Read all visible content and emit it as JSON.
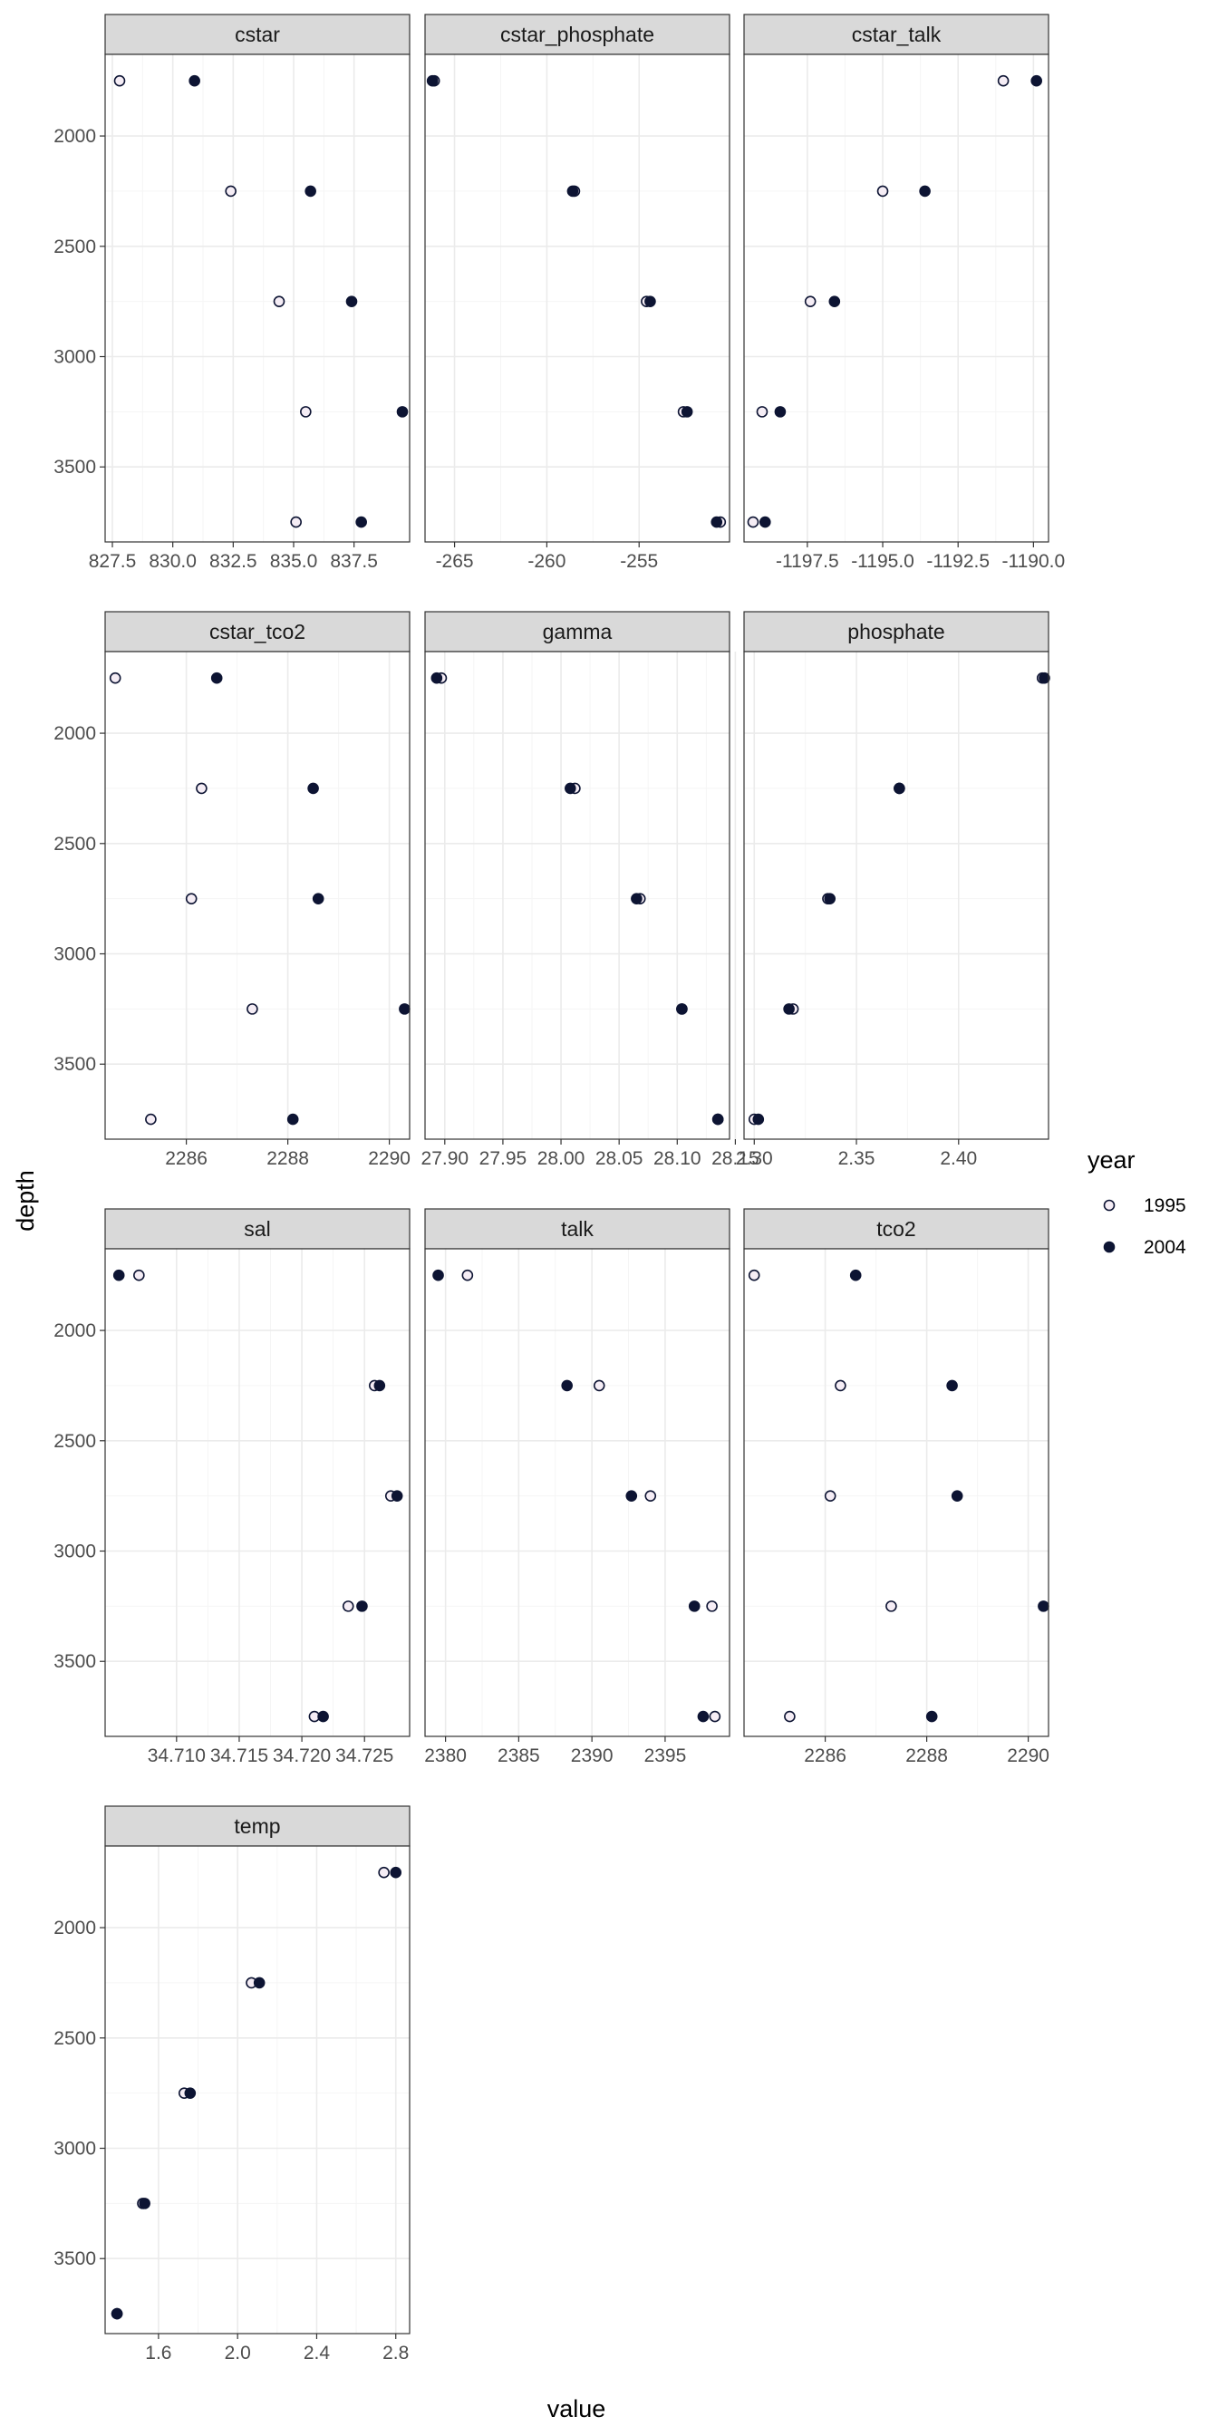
{
  "chart_data": {
    "type": "scatter",
    "xlabel": "value",
    "ylabel": "depth",
    "y_axis": "reversed",
    "y_range": [
      1630,
      3840
    ],
    "y_ticks": [
      2000,
      2500,
      3000,
      3500
    ],
    "y_tick_labels": [
      "2000",
      "2500",
      "3000",
      "3500"
    ],
    "depths": [
      1750,
      2250,
      2750,
      3250,
      3750
    ],
    "grid": true,
    "facet_scales": "free_x",
    "legend": {
      "title": "year",
      "position": "right",
      "entries": [
        {
          "label": "1995",
          "fill": "#f5edf5",
          "stroke": "#0d1433"
        },
        {
          "label": "2004",
          "fill": "#0d1433",
          "stroke": "#0d1433"
        }
      ]
    },
    "colors": {
      "panel_border": "#333333",
      "strip_fill": "#d9d9d9",
      "grid_major": "#ebebeb",
      "grid_minor": "#f5f5f5"
    },
    "panels": [
      {
        "title": "cstar",
        "xlim": [
          827.2,
          839.8
        ],
        "x_ticks": [
          827.5,
          830.0,
          832.5,
          835.0,
          837.5
        ],
        "x_tick_labels": [
          "827.5",
          "830.0",
          "832.5",
          "835.0",
          "837.5"
        ],
        "series": [
          {
            "year": "1995",
            "x": [
              827.8,
              832.4,
              834.4,
              835.5,
              835.1
            ]
          },
          {
            "year": "2004",
            "x": [
              830.9,
              835.7,
              837.4,
              839.5,
              837.8
            ]
          }
        ]
      },
      {
        "title": "cstar_phosphate",
        "xlim": [
          -266.6,
          -250.1
        ],
        "x_ticks": [
          -265,
          -260,
          -255
        ],
        "x_tick_labels": [
          "-265",
          "-260",
          "-255"
        ],
        "series": [
          {
            "year": "1995",
            "x": [
              -266.1,
              -258.5,
              -254.6,
              -252.6,
              -250.6
            ]
          },
          {
            "year": "2004",
            "x": [
              -266.2,
              -258.6,
              -254.4,
              -252.4,
              -250.8
            ]
          }
        ]
      },
      {
        "title": "cstar_talk",
        "xlim": [
          -1199.6,
          -1189.5
        ],
        "x_ticks": [
          -1197.5,
          -1195.0,
          -1192.5,
          -1190.0
        ],
        "x_tick_labels": [
          "-1197.5",
          "-1195.0",
          "-1192.5",
          "-1190.0"
        ],
        "series": [
          {
            "year": "1995",
            "x": [
              -1191.0,
              -1195.0,
              -1197.4,
              -1199.0,
              -1199.3
            ]
          },
          {
            "year": "2004",
            "x": [
              -1189.9,
              -1193.6,
              -1196.6,
              -1198.4,
              -1198.9
            ]
          }
        ]
      },
      {
        "title": "cstar_tco2",
        "xlim": [
          2284.4,
          2290.4
        ],
        "x_ticks": [
          2286,
          2288,
          2290
        ],
        "x_tick_labels": [
          "2286",
          "2288",
          "2290"
        ],
        "series": [
          {
            "year": "1995",
            "x": [
              2284.6,
              2286.3,
              2286.1,
              2287.3,
              2285.3
            ]
          },
          {
            "year": "2004",
            "x": [
              2286.6,
              2288.5,
              2288.6,
              2290.3,
              2288.1
            ]
          }
        ]
      },
      {
        "title": "gamma",
        "xlim": [
          27.883,
          28.145
        ],
        "x_ticks": [
          27.9,
          27.95,
          28.0,
          28.05,
          28.1,
          28.15
        ],
        "x_tick_labels": [
          "27.90",
          "27.95",
          "28.00",
          "28.05",
          "28.10",
          "28.15"
        ],
        "series": [
          {
            "year": "1995",
            "x": [
              27.897,
              28.012,
              28.068,
              28.104,
              28.135
            ]
          },
          {
            "year": "2004",
            "x": [
              27.893,
              28.008,
              28.065,
              28.104,
              28.135
            ]
          }
        ]
      },
      {
        "title": "phosphate",
        "xlim": [
          2.295,
          2.444
        ],
        "x_ticks": [
          2.3,
          2.35,
          2.4
        ],
        "x_tick_labels": [
          "2.30",
          "2.35",
          "2.40"
        ],
        "series": [
          {
            "year": "1995",
            "x": [
              2.441,
              2.371,
              2.336,
              2.319,
              2.3
            ]
          },
          {
            "year": "2004",
            "x": [
              2.442,
              2.371,
              2.337,
              2.317,
              2.302
            ]
          }
        ]
      },
      {
        "title": "sal",
        "xlim": [
          34.7043,
          34.7286
        ],
        "x_ticks": [
          34.71,
          34.715,
          34.72,
          34.725
        ],
        "x_tick_labels": [
          "34.710",
          "34.715",
          "34.720",
          "34.725"
        ],
        "series": [
          {
            "year": "1995",
            "x": [
              34.707,
              34.7258,
              34.7271,
              34.7237,
              34.721
            ]
          },
          {
            "year": "2004",
            "x": [
              34.7054,
              34.7262,
              34.7276,
              34.7248,
              34.7217
            ]
          }
        ]
      },
      {
        "title": "talk",
        "xlim": [
          2378.6,
          2399.4
        ],
        "x_ticks": [
          2380,
          2385,
          2390,
          2395
        ],
        "x_tick_labels": [
          "2380",
          "2385",
          "2390",
          "2395"
        ],
        "series": [
          {
            "year": "1995",
            "x": [
              2381.5,
              2390.5,
              2394.0,
              2398.2,
              2398.4
            ]
          },
          {
            "year": "2004",
            "x": [
              2379.5,
              2388.3,
              2392.7,
              2397.0,
              2397.6
            ]
          }
        ]
      },
      {
        "title": "tco2",
        "xlim": [
          2284.4,
          2290.4
        ],
        "x_ticks": [
          2286,
          2288,
          2290
        ],
        "x_tick_labels": [
          "2286",
          "2288",
          "2290"
        ],
        "series": [
          {
            "year": "1995",
            "x": [
              2284.6,
              2286.3,
              2286.1,
              2287.3,
              2285.3
            ]
          },
          {
            "year": "2004",
            "x": [
              2286.6,
              2288.5,
              2288.6,
              2290.3,
              2288.1
            ]
          }
        ]
      },
      {
        "title": "temp",
        "xlim": [
          1.33,
          2.87
        ],
        "x_ticks": [
          1.6,
          2.0,
          2.4,
          2.8
        ],
        "x_tick_labels": [
          "1.6",
          "2.0",
          "2.4",
          "2.8"
        ],
        "series": [
          {
            "year": "1995",
            "x": [
              2.74,
              2.07,
              1.73,
              1.52,
              1.39
            ]
          },
          {
            "year": "2004",
            "x": [
              2.8,
              2.11,
              1.76,
              1.53,
              1.39
            ]
          }
        ]
      }
    ]
  }
}
